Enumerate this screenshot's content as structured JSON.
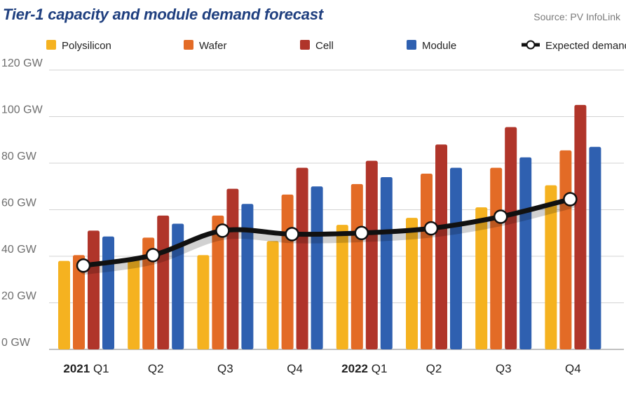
{
  "header": {
    "title": "Tier-1 capacity and module demand forecast",
    "source": "Source: PV InfoLink"
  },
  "colors": {
    "polysilicon": "#f5b220",
    "wafer": "#e36b26",
    "cell": "#b0352a",
    "module": "#2f60b0",
    "demand_line": "#111111",
    "grid": "#d3d3d3"
  },
  "chart_data": {
    "type": "bar",
    "title": "Tier-1 capacity and module demand forecast",
    "unit": "GW",
    "categories": [
      "2021 Q1",
      "Q2",
      "Q3",
      "Q4",
      "2022 Q1",
      "Q2",
      "Q3",
      "Q4"
    ],
    "category_labels": [
      {
        "year": "2021",
        "quarter": "Q1"
      },
      {
        "year": "",
        "quarter": "Q2"
      },
      {
        "year": "",
        "quarter": "Q3"
      },
      {
        "year": "",
        "quarter": "Q4"
      },
      {
        "year": "2022",
        "quarter": "Q1"
      },
      {
        "year": "",
        "quarter": "Q2"
      },
      {
        "year": "",
        "quarter": "Q3"
      },
      {
        "year": "",
        "quarter": "Q4"
      }
    ],
    "series": [
      {
        "name": "Polysilicon",
        "type": "bar",
        "color": "#f5b220",
        "values": [
          38,
          39,
          40.5,
          46.5,
          53.5,
          56.5,
          61,
          70.5
        ]
      },
      {
        "name": "Wafer",
        "type": "bar",
        "color": "#e36b26",
        "values": [
          40.5,
          48,
          57.5,
          66.5,
          71,
          75.5,
          78,
          85.5
        ]
      },
      {
        "name": "Cell",
        "type": "bar",
        "color": "#b0352a",
        "values": [
          51,
          57.5,
          69,
          78,
          81,
          88,
          95.5,
          105
        ]
      },
      {
        "name": "Module",
        "type": "bar",
        "color": "#2f60b0",
        "values": [
          48.5,
          54,
          62.5,
          70,
          74,
          78,
          82.5,
          87
        ]
      },
      {
        "name": "Expected demand",
        "type": "line",
        "color": "#111111",
        "values": [
          36,
          40.5,
          51,
          49.5,
          50,
          52,
          57,
          64.5
        ]
      }
    ],
    "yticks": [
      0,
      20,
      40,
      60,
      80,
      100,
      120
    ],
    "ytick_labels": [
      "0 GW",
      "20 GW",
      "40 GW",
      "60 GW",
      "80 GW",
      "100 GW",
      "120 GW"
    ],
    "ylim": [
      0,
      120
    ],
    "grid": true,
    "legend_position": "top"
  }
}
